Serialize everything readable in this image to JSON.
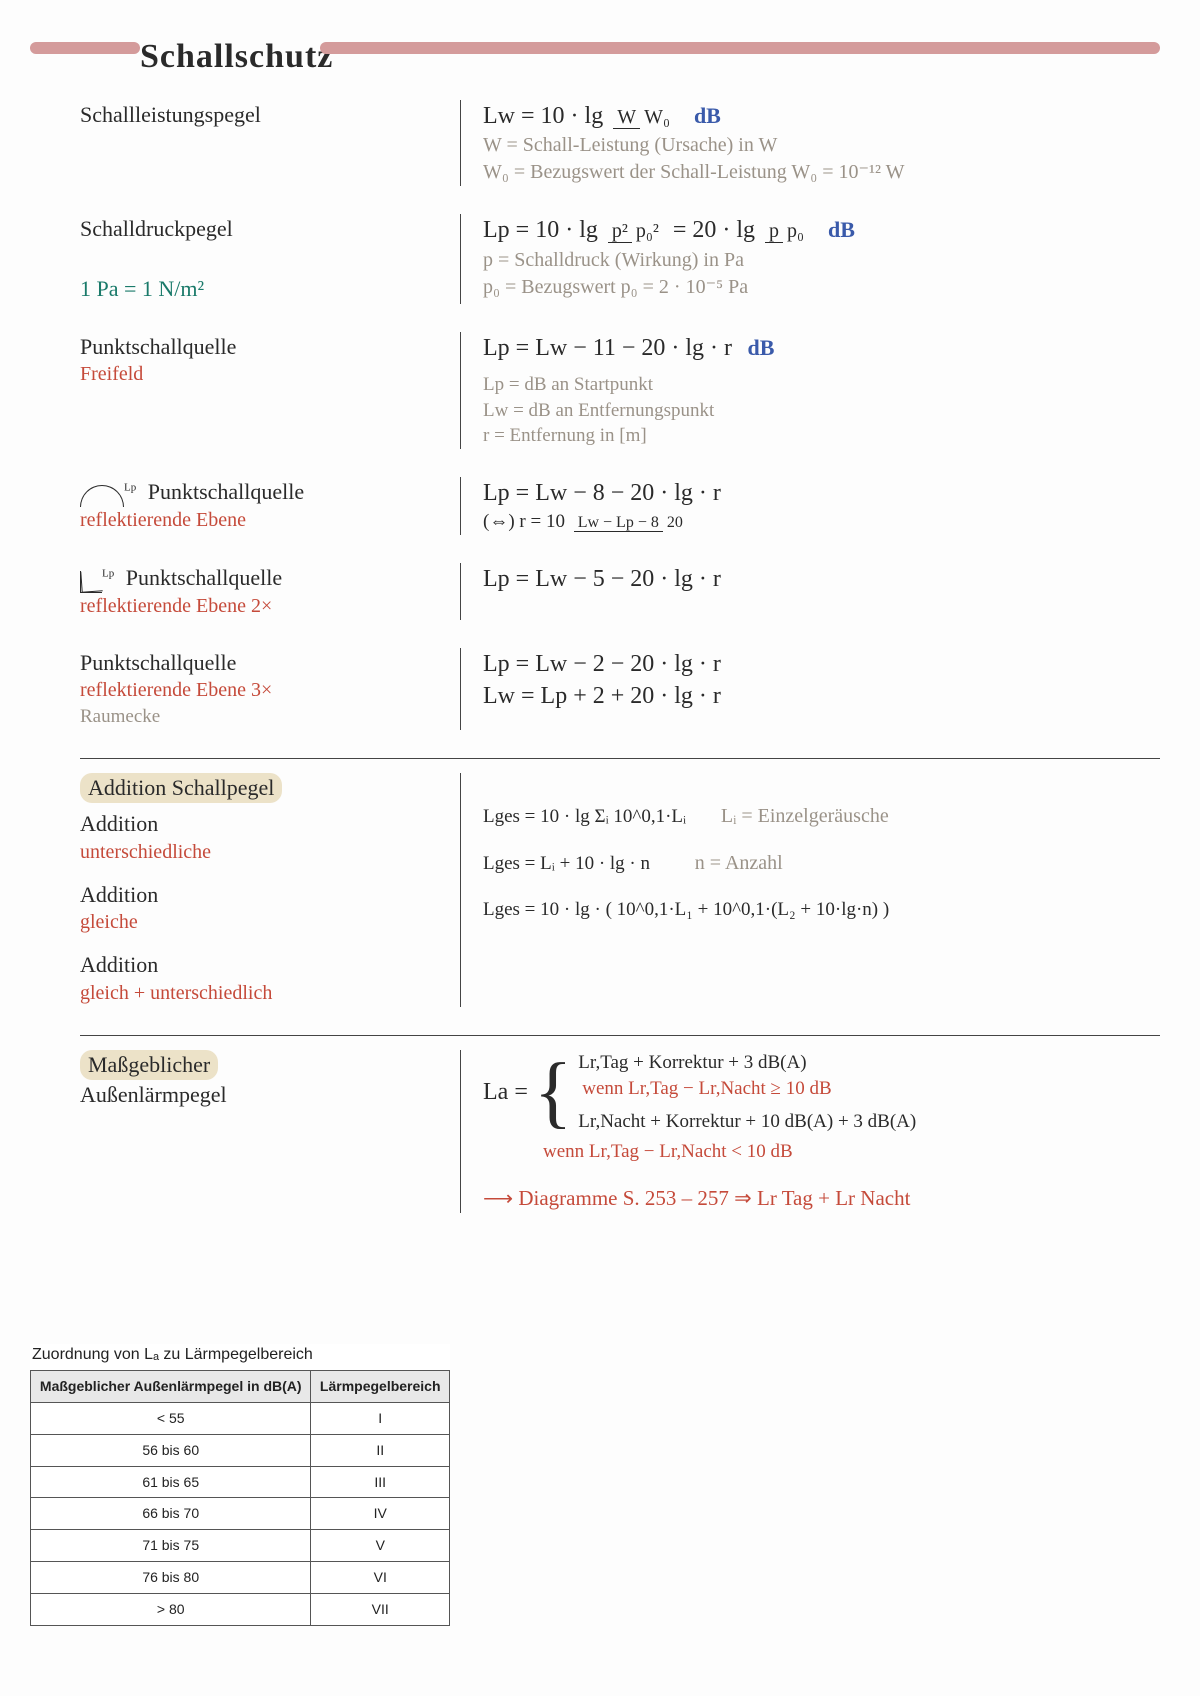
{
  "page": {
    "title": "Schallschutz",
    "barColor": "#d49b9b",
    "bgColor": "#fdfdfd"
  },
  "s1": {
    "t1": "Schallleistungspegel",
    "e1a": "Lw = 10 · lg",
    "e1frac_n": "W",
    "e1frac_d": "W₀",
    "unit": "dB",
    "g1": "W = Schall-Leistung (Ursache) in W",
    "g2": "W₀ = Bezugswert der Schall-Leistung  W₀ = 10⁻¹² W",
    "t2": "Schalldruckpegel",
    "e2a": "Lp = 10 · lg",
    "e2f1n": "p²",
    "e2f1d": "p₀²",
    "e2b": " = 20 · lg",
    "e2f2n": "p",
    "e2f2d": "p₀",
    "pa": "1 Pa = 1 N/m²",
    "g3": "p = Schalldruck (Wirkung) in Pa",
    "g4": "p₀ = Bezugswert   p₀ = 2 · 10⁻⁵ Pa",
    "t3": "Punktschallquelle",
    "t3s": "Freifeld",
    "e3": "Lp = Lw − 11 − 20 · lg · r",
    "g5": "Lp = dB an Startpunkt",
    "g6": "Lw = dB an Entfernungspunkt",
    "g7": "r = Entfernung in [m]",
    "t4": "Punktschallquelle",
    "t4s": "reflektierende Ebene",
    "e4": "Lp = Lw − 8 − 20 · lg · r",
    "e4b": "(⇔) r = 10",
    "e4fn": "Lw − Lp − 8",
    "e4fd": "20",
    "t5": "Punktschallquelle",
    "t5s": "reflektierende Ebene 2×",
    "e5": "Lp = Lw − 5 − 20 · lg · r",
    "t6": "Punktschallquelle",
    "t6s": "reflektierende Ebene 3×",
    "t6n": "Raumecke",
    "e6a": "Lp = Lw − 2 − 20 · lg · r",
    "e6b": "Lw = Lp + 2 + 20 · lg · r"
  },
  "s2": {
    "h": "Addition Schallpegel",
    "a1t": "Addition",
    "a1s": "unterschiedliche",
    "a1e": "Lges = 10 · lg Σᵢ 10^0,1·Lᵢ",
    "a1n": "Lᵢ = Einzelgeräusche",
    "a2t": "Addition",
    "a2s": "gleiche",
    "a2e": "Lges = Lᵢ + 10 · lg · n",
    "a2n": "n = Anzahl",
    "a3t": "Addition",
    "a3s": "gleich + unterschiedlich",
    "a3e": "Lges = 10 · lg · ( 10^0,1·L₁ + 10^0,1·(L₂ + 10·lg·n) )"
  },
  "s3": {
    "h1": "Maßgeblicher",
    "h2": "Außenlärmpegel",
    "la": "La =",
    "c1": "Lr,Tag + Korrektur + 3 dB(A)",
    "c1w": "wenn  Lr,Tag − Lr,Nacht ≥ 10 dB",
    "c2": "Lr,Nacht + Korrektur + 10 dB(A) + 3 dB(A)",
    "c2w": "wenn  Lr,Tag − Lr,Nacht < 10 dB",
    "arrow": "⟶ Diagramme S. 253 – 257  ⇒  Lr Tag + Lr Nacht"
  },
  "table": {
    "caption": "Zuordnung von Lₐ zu Lärmpegelbereich",
    "h1": "Maßgeblicher Außenlärmpegel in dB(A)",
    "h2": "Lärmpegelbereich",
    "rows": [
      [
        "< 55",
        "I"
      ],
      [
        "56 bis 60",
        "II"
      ],
      [
        "61 bis 65",
        "III"
      ],
      [
        "66 bis 70",
        "IV"
      ],
      [
        "71 bis 75",
        "V"
      ],
      [
        "76 bis 80",
        "VI"
      ],
      [
        "> 80",
        "VII"
      ]
    ],
    "header_bg": "#e8e8e8",
    "border": "#555555",
    "font": "Arial"
  }
}
